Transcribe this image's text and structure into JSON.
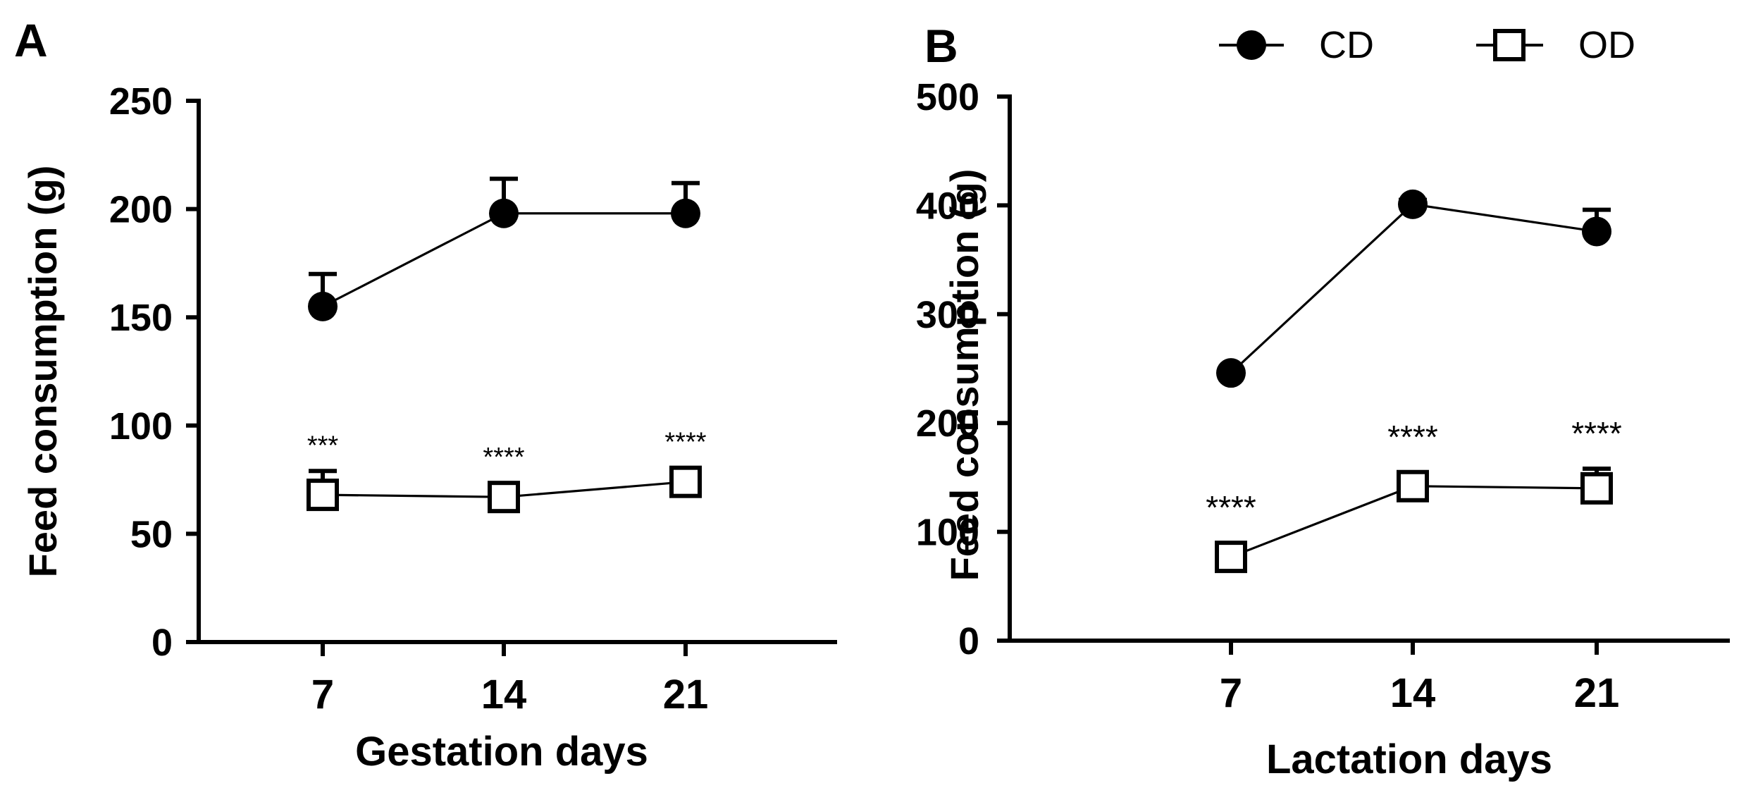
{
  "legend": {
    "items": [
      {
        "name": "CD",
        "marker": "filled-circle"
      },
      {
        "name": "OD",
        "marker": "open-square"
      }
    ]
  },
  "chart_data": [
    {
      "panel_label": "A",
      "type": "line",
      "categories": [
        "7",
        "14",
        "21"
      ],
      "xlabel": "Gestation days",
      "ylabel": "Feed consumption (g)",
      "ylim": [
        0,
        250
      ],
      "yticks": [
        0,
        50,
        100,
        150,
        200,
        250
      ],
      "series": [
        {
          "name": "CD",
          "values": [
            155,
            198,
            198
          ],
          "error_upper": [
            170,
            214,
            212
          ]
        },
        {
          "name": "OD",
          "values": [
            68,
            67,
            74
          ],
          "error_upper": [
            79,
            71,
            79
          ]
        }
      ],
      "annotations": [
        "***",
        "****",
        "****"
      ]
    },
    {
      "panel_label": "B",
      "type": "line",
      "categories": [
        "7",
        "14",
        "21"
      ],
      "xlabel": "Lactation days",
      "ylabel": "Feed consumption (g)",
      "ylim": [
        0,
        500
      ],
      "yticks": [
        0,
        100,
        200,
        300,
        400,
        500
      ],
      "series": [
        {
          "name": "CD",
          "values": [
            246,
            401,
            376
          ],
          "error_upper": [
            246,
            405,
            396
          ]
        },
        {
          "name": "OD",
          "values": [
            77,
            142,
            140
          ],
          "error_upper": [
            80,
            147,
            158
          ]
        }
      ],
      "annotations": [
        "****",
        "****",
        "****"
      ]
    }
  ]
}
